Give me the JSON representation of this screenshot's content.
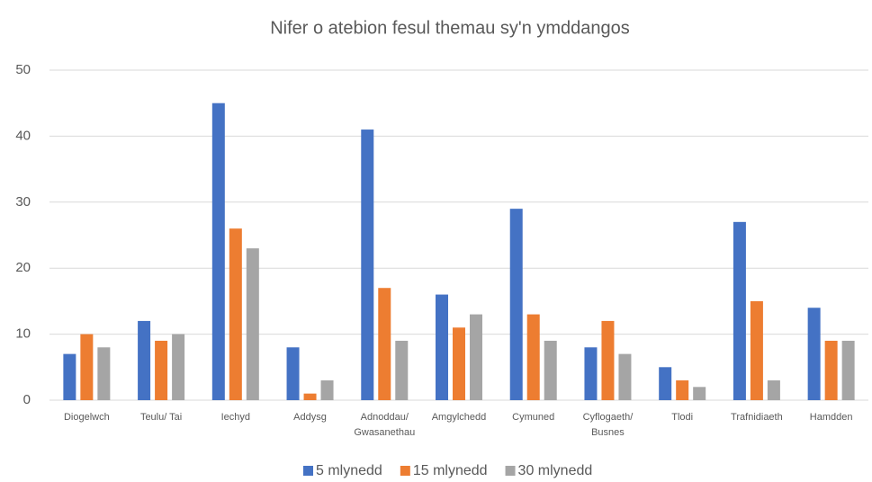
{
  "chart_data": {
    "type": "bar",
    "title": "Nifer o atebion fesul themau sy'n ymddangos",
    "categories": [
      "Diogelwch",
      "Teulu/ Tai",
      "Iechyd",
      "Addysg",
      "Adnoddau/ Gwasanethau",
      "Amgylchedd",
      "Cymuned",
      "Cyflogaeth/ Busnes",
      "Tlodi",
      "Trafnidiaeth",
      "Hamdden"
    ],
    "series": [
      {
        "name": "5 mlynedd",
        "color": "#4472c4",
        "values": [
          7,
          12,
          45,
          8,
          41,
          16,
          29,
          8,
          5,
          27,
          14
        ]
      },
      {
        "name": "15 mlynedd",
        "color": "#ed7d31",
        "values": [
          10,
          9,
          26,
          1,
          17,
          11,
          13,
          12,
          3,
          15,
          9
        ]
      },
      {
        "name": "30 mlynedd",
        "color": "#a5a5a5",
        "values": [
          8,
          10,
          23,
          3,
          9,
          13,
          9,
          7,
          2,
          3,
          9
        ]
      }
    ],
    "ylim": [
      0,
      50
    ],
    "yticks": [
      0,
      10,
      20,
      30,
      40,
      50
    ],
    "grid": true,
    "legend": "bottom"
  }
}
